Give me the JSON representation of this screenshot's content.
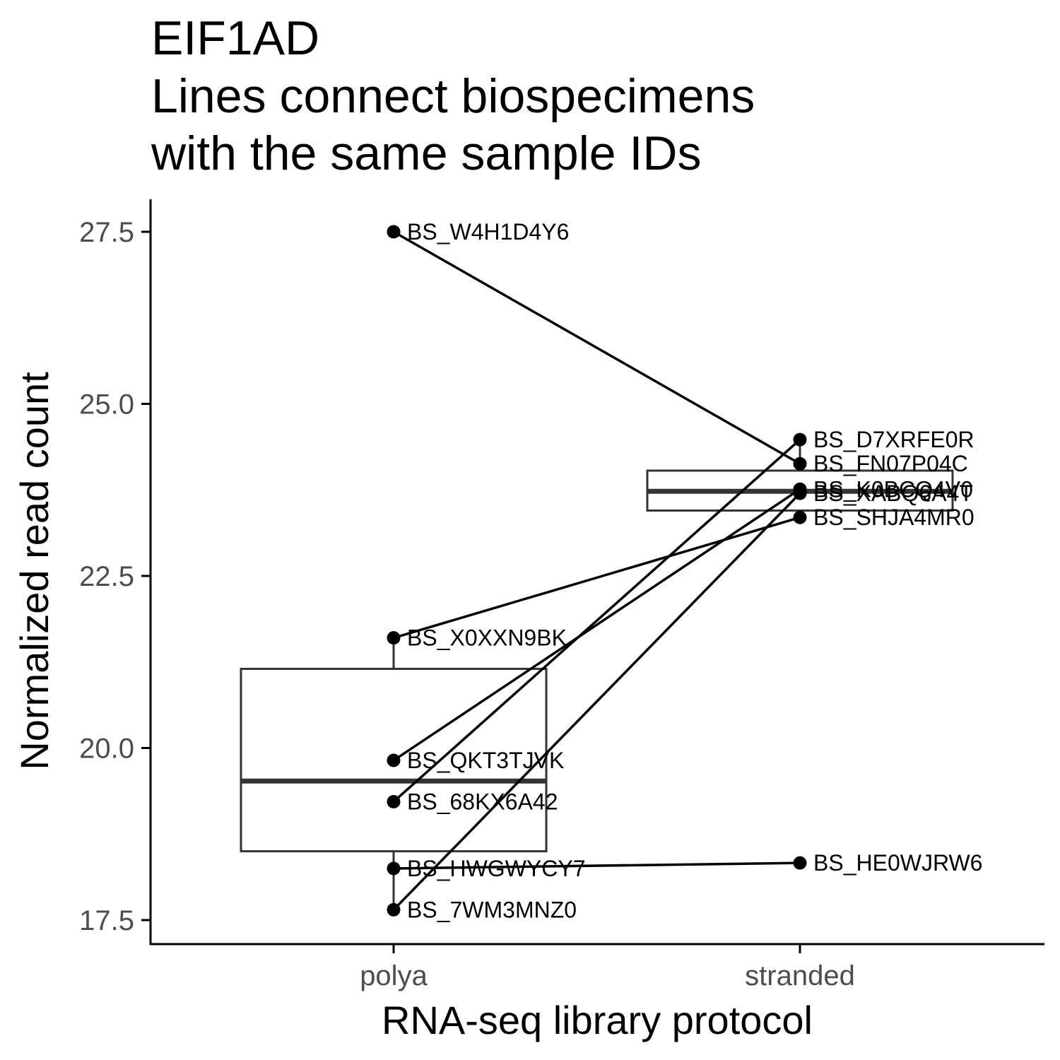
{
  "chart_data": {
    "type": "boxplot",
    "title_lines": [
      "EIF1AD",
      "Lines connect biospecimens",
      "with the same sample IDs"
    ],
    "xlabel": "RNA-seq library protocol",
    "ylabel": "Normalized read count",
    "categories": [
      "polya",
      "stranded"
    ],
    "ylim": [
      17.2,
      28.0
    ],
    "yticks": [
      17.5,
      20.0,
      22.5,
      25.0,
      27.5
    ],
    "ytick_labels": [
      "17.5",
      "20.0",
      "22.5",
      "25.0",
      "27.5"
    ],
    "grid": false,
    "legend": "none",
    "boxes": [
      {
        "category": "polya",
        "whisker_low": 17.65,
        "q1": 18.5,
        "median": 19.52,
        "q3": 21.15,
        "whisker_high": 21.6
      },
      {
        "category": "stranded",
        "whisker_low": 23.35,
        "q1": 23.45,
        "median": 23.73,
        "q3": 24.03,
        "whisker_high": 24.48
      }
    ],
    "points": [
      {
        "category": "polya",
        "label": "BS_W4H1D4Y6",
        "y": 27.5
      },
      {
        "category": "polya",
        "label": "BS_X0XXN9BK",
        "y": 21.6
      },
      {
        "category": "polya",
        "label": "BS_QKT3TJVK",
        "y": 19.82
      },
      {
        "category": "polya",
        "label": "BS_68KX6A42",
        "y": 19.22
      },
      {
        "category": "polya",
        "label": "BS_HWGWYCY7",
        "y": 18.25
      },
      {
        "category": "polya",
        "label": "BS_7WM3MNZ0",
        "y": 17.65
      },
      {
        "category": "stranded",
        "label": "BS_D7XRFE0R",
        "y": 24.48
      },
      {
        "category": "stranded",
        "label": "BS_FN07P04C",
        "y": 24.13
      },
      {
        "category": "stranded",
        "label": "BS_K0BCQ4V0",
        "y": 23.76
      },
      {
        "category": "stranded",
        "label": "BS_XABQ6A4T",
        "y": 23.7
      },
      {
        "category": "stranded",
        "label": "BS_SHJA4MR0",
        "y": 23.35
      },
      {
        "category": "stranded",
        "label": "BS_HE0WJRW6",
        "y": 18.33
      }
    ],
    "connections": [
      {
        "from_y": 27.5,
        "to_y": 24.13
      },
      {
        "from_y": 21.6,
        "to_y": 23.35
      },
      {
        "from_y": 19.82,
        "to_y": 23.76
      },
      {
        "from_y": 19.22,
        "to_y": 24.48
      },
      {
        "from_y": 18.25,
        "to_y": 18.33
      },
      {
        "from_y": 17.65,
        "to_y": 23.7
      }
    ],
    "colors": {
      "points": "#000000",
      "lines": "#000000",
      "box": "#333333",
      "tick_labels": "#4d4d4d"
    }
  }
}
